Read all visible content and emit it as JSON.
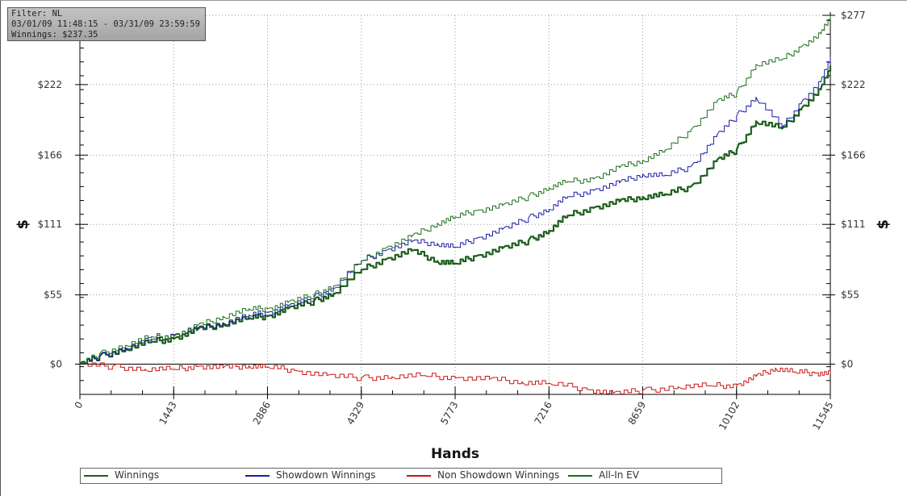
{
  "info": {
    "filter": "Filter: NL",
    "date_range": "03/01/09 11:48:15 - 03/31/09 23:59:59",
    "winnings": "Winnings: $237.35"
  },
  "chart_data": {
    "type": "line",
    "xlabel": "Hands",
    "ylabel_left": "$",
    "ylabel_right": "$",
    "xlim": [
      0,
      11545
    ],
    "ylim": [
      -24,
      277
    ],
    "x_ticks": [
      0,
      1443,
      2886,
      4329,
      5773,
      7216,
      8659,
      10102,
      11545
    ],
    "y_ticks": [
      0,
      55,
      111,
      166,
      222,
      277
    ],
    "y_tick_labels_left": [
      "$0",
      "$55",
      "$111",
      "$166",
      "$222"
    ],
    "y_tick_labels_right": [
      "$0",
      "$55",
      "$111",
      "$166",
      "$222",
      "$277"
    ],
    "grid": true,
    "legend_position": "bottom",
    "series": [
      {
        "name": "Winnings",
        "color": "#1c5e1c",
        "x": [
          0,
          300,
          700,
          1100,
          1443,
          1800,
          2200,
          2600,
          2886,
          3200,
          3600,
          3900,
          4329,
          4700,
          5100,
          5500,
          5773,
          6100,
          6500,
          6900,
          7216,
          7500,
          7900,
          8300,
          8659,
          9000,
          9400,
          9800,
          10102,
          10400,
          10800,
          11100,
          11400,
          11545
        ],
        "y": [
          0,
          6,
          12,
          18,
          20,
          27,
          32,
          37,
          38,
          44,
          50,
          56,
          75,
          83,
          90,
          82,
          80,
          86,
          92,
          98,
          106,
          118,
          124,
          129,
          133,
          135,
          141,
          162,
          170,
          193,
          187,
          203,
          218,
          237
        ]
      },
      {
        "name": "Showdown Winnings",
        "color": "#1a1aa8",
        "x": [
          0,
          300,
          700,
          1100,
          1443,
          1800,
          2200,
          2600,
          2886,
          3200,
          3600,
          3900,
          4329,
          4700,
          5100,
          5500,
          5773,
          6100,
          6500,
          6900,
          7216,
          7500,
          7900,
          8300,
          8659,
          9000,
          9400,
          9800,
          10102,
          10400,
          10800,
          11100,
          11400,
          11545
        ],
        "y": [
          0,
          6,
          13,
          20,
          23,
          28,
          33,
          39,
          41,
          46,
          53,
          60,
          82,
          90,
          97,
          96,
          93,
          100,
          107,
          116,
          123,
          133,
          138,
          144,
          151,
          150,
          157,
          182,
          197,
          212,
          188,
          208,
          224,
          244
        ]
      },
      {
        "name": "Non Showdown Winnings",
        "color": "#cc1111",
        "x": [
          0,
          500,
          1000,
          1443,
          1800,
          2200,
          2600,
          2886,
          3300,
          3800,
          4329,
          4800,
          5300,
          5773,
          6300,
          6800,
          7216,
          7800,
          8200,
          8659,
          9200,
          9700,
          10102,
          10400,
          10700,
          11000,
          11300,
          11545
        ],
        "y": [
          0,
          -2,
          -4,
          -4,
          -2,
          -3,
          -1,
          -2,
          -5,
          -9,
          -11,
          -10,
          -9,
          -11,
          -12,
          -14,
          -15,
          -20,
          -23,
          -21,
          -18,
          -17,
          -17,
          -10,
          -3,
          -6,
          -7,
          -7
        ]
      },
      {
        "name": "All-In EV",
        "color": "#1a6e1a",
        "x": [
          0,
          300,
          700,
          1100,
          1443,
          1800,
          2200,
          2600,
          2886,
          3200,
          3600,
          3900,
          4329,
          4700,
          5100,
          5500,
          5773,
          6100,
          6500,
          6900,
          7216,
          7500,
          7900,
          8300,
          8659,
          9000,
          9400,
          9800,
          10102,
          10400,
          10800,
          11100,
          11400,
          11545
        ],
        "y": [
          0,
          8,
          15,
          22,
          22,
          30,
          38,
          44,
          44,
          49,
          55,
          62,
          82,
          92,
          101,
          112,
          117,
          122,
          126,
          133,
          140,
          145,
          147,
          156,
          162,
          170,
          186,
          209,
          215,
          238,
          242,
          252,
          262,
          277
        ]
      }
    ]
  }
}
